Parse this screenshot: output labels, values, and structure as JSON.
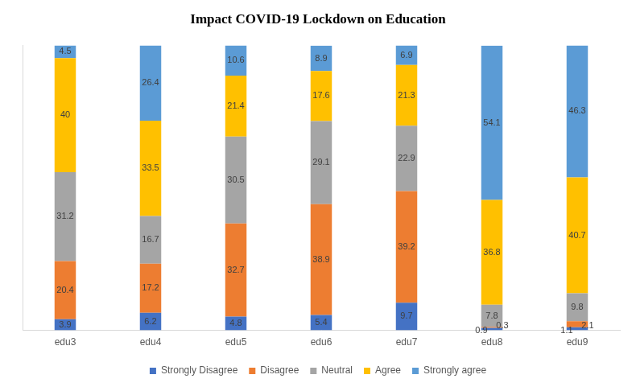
{
  "chart_data": {
    "type": "bar",
    "title": "Impact COVID-19 Lockdown on Education",
    "categories": [
      "edu3",
      "edu4",
      "edu5",
      "edu6",
      "edu7",
      "edu8",
      "edu9"
    ],
    "series": [
      {
        "name": "Strongly Disagree",
        "color": "#4472c4",
        "values": [
          3.9,
          6.2,
          4.8,
          5.4,
          9.7,
          0.9,
          1.1
        ]
      },
      {
        "name": "Disagree",
        "color": "#ed7d31",
        "values": [
          20.4,
          17.2,
          32.7,
          38.9,
          39.2,
          0.3,
          2.1
        ]
      },
      {
        "name": "Neutral",
        "color": "#a5a5a5",
        "values": [
          31.2,
          16.7,
          30.5,
          29.1,
          22.9,
          7.8,
          9.8
        ]
      },
      {
        "name": "Agree",
        "color": "#ffc000",
        "values": [
          40,
          33.5,
          21.4,
          17.6,
          21.3,
          36.8,
          40.7
        ]
      },
      {
        "name": "Strongly agree",
        "color": "#5b9bd5",
        "values": [
          4.5,
          26.4,
          10.6,
          8.9,
          6.9,
          54.1,
          46.3
        ]
      }
    ],
    "ylim": [
      0,
      100
    ],
    "stacked": true,
    "data_labels": true,
    "grid": false,
    "legend": "bottom",
    "tick_labels": "x"
  }
}
